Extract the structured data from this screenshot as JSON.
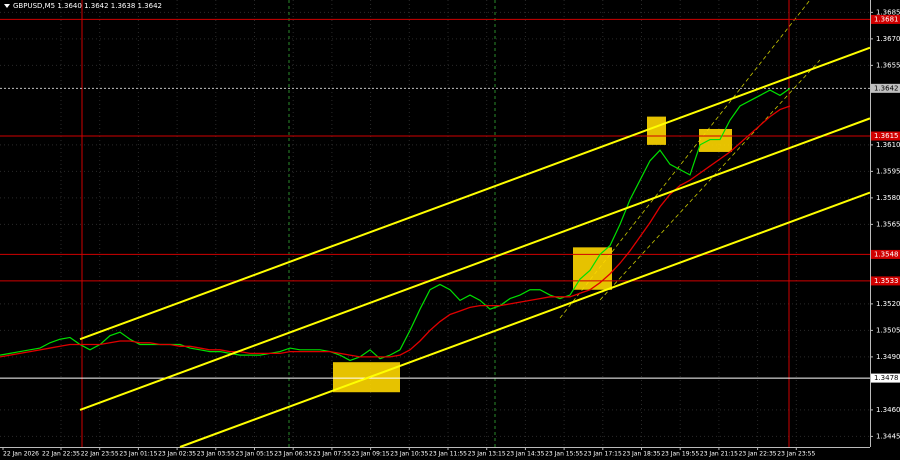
{
  "chart_data": {
    "type": "line",
    "title": "GBPUSD,M5  1.3640 1.3642 1.3638 1.3642",
    "ylim": [
      1.3439,
      1.3692
    ],
    "yticks": [
      1.3685,
      {
        "value": 1.367,
        "label": "1.3670"
      },
      1.3655,
      {
        "value": 1.361,
        "label": "1.3610"
      },
      1.3595,
      {
        "value": 1.358,
        "label": "1.3580"
      },
      1.3565,
      {
        "value": 1.352,
        "label": "1.3520"
      },
      1.3505,
      {
        "value": 1.349,
        "label": "1.3490"
      },
      {
        "value": 1.346,
        "label": "1.3460"
      },
      1.3445
    ],
    "time_labels": [
      "22 Jan 2026",
      "22 Jan 22:35",
      "22 Jan 23:55",
      "23 Jan 01:15",
      "23 Jan 02:35",
      "23 Jan 03:55",
      "23 Jan 05:15",
      "23 Jan 06:35",
      "23 Jan 07:55",
      "23 Jan 09:15",
      "23 Jan 10:35",
      "23 Jan 11:55",
      "23 Jan 13:15",
      "23 Jan 14:35",
      "23 Jan 15:55",
      "23 Jan 17:15",
      "23 Jan 18:35",
      "23 Jan 19:55",
      "23 Jan 21:15",
      "23 Jan 22:35",
      "23 Jan 23:55"
    ],
    "grid": true,
    "price": {
      "color": "#00e000",
      "values": [
        1.3491,
        1.3492,
        1.3493,
        1.3494,
        1.3495,
        1.3498,
        1.35,
        1.3501,
        1.3497,
        1.3494,
        1.3497,
        1.3502,
        1.3504,
        1.35,
        1.3497,
        1.3497,
        1.3497,
        1.3497,
        1.3497,
        1.3495,
        1.3494,
        1.3493,
        1.3493,
        1.3492,
        1.3491,
        1.3491,
        1.3491,
        1.3492,
        1.3493,
        1.3495,
        1.3494,
        1.3494,
        1.3494,
        1.3493,
        1.3491,
        1.3488,
        1.349,
        1.3494,
        1.3489,
        1.3491,
        1.3494,
        1.3505,
        1.3517,
        1.3528,
        1.3531,
        1.3528,
        1.3522,
        1.3525,
        1.3522,
        1.3517,
        1.3519,
        1.3523,
        1.3525,
        1.3528,
        1.3528,
        1.3525,
        1.3523,
        1.3525,
        1.3534,
        1.3539,
        1.3548,
        1.3553,
        1.3565,
        1.3579,
        1.359,
        1.3601,
        1.3607,
        1.3599,
        1.3596,
        1.3593,
        1.361,
        1.3613,
        1.3613,
        1.3624,
        1.3632,
        1.3635,
        1.3638,
        1.3641,
        1.3638,
        1.3642
      ]
    },
    "moving_average": {
      "color": "#e00000",
      "values": [
        1.349,
        1.3491,
        1.3492,
        1.3493,
        1.3494,
        1.3495,
        1.3496,
        1.3497,
        1.3497,
        1.3497,
        1.3497,
        1.3498,
        1.3499,
        1.3499,
        1.3498,
        1.3498,
        1.3497,
        1.3497,
        1.3496,
        1.3496,
        1.3495,
        1.3494,
        1.3494,
        1.3493,
        1.3493,
        1.3492,
        1.3492,
        1.3492,
        1.3492,
        1.3493,
        1.3493,
        1.3493,
        1.3493,
        1.3493,
        1.3492,
        1.3491,
        1.349,
        1.349,
        1.349,
        1.349,
        1.3491,
        1.3494,
        1.3499,
        1.3505,
        1.351,
        1.3514,
        1.3516,
        1.3518,
        1.3519,
        1.3519,
        1.3519,
        1.352,
        1.3521,
        1.3522,
        1.3523,
        1.3524,
        1.3524,
        1.3524,
        1.3526,
        1.3528,
        1.3532,
        1.3537,
        1.3543,
        1.355,
        1.3558,
        1.3566,
        1.3575,
        1.3582,
        1.3587,
        1.359,
        1.3594,
        1.3598,
        1.3602,
        1.3606,
        1.3611,
        1.3616,
        1.3621,
        1.3626,
        1.363,
        1.3632
      ]
    },
    "levels": [
      {
        "value": 1.3681,
        "color": "#d00000"
      },
      {
        "value": 1.3642,
        "color": "#c0c0c0"
      },
      {
        "value": 1.3615,
        "color": "#d00000"
      },
      {
        "value": 1.3548,
        "color": "#d00000"
      },
      {
        "value": 1.3533,
        "color": "#d00000"
      },
      {
        "value": 1.3478,
        "color": "#ffffff"
      }
    ],
    "channel": {
      "color": "#ffff00",
      "lines": [
        [
          1.35,
          1.3665
        ],
        [
          1.346,
          1.3625
        ],
        [
          1.3439,
          1.3583
        ]
      ]
    },
    "zones": {
      "color": "#ffd700",
      "ranges": [
        [
          1.3487,
          1.347
        ],
        [
          1.3552,
          1.3528
        ],
        [
          1.3626,
          1.361
        ],
        [
          1.3619,
          1.3606
        ]
      ]
    }
  }
}
